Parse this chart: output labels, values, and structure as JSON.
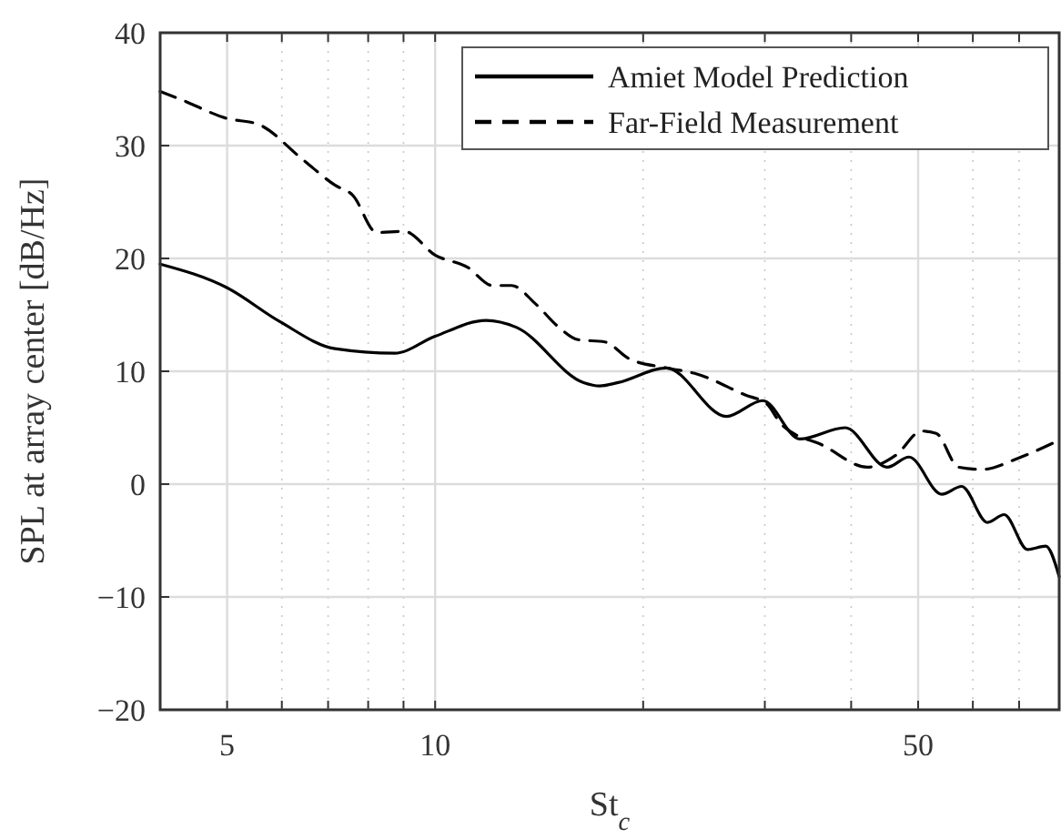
{
  "chart_data": {
    "type": "line",
    "xlabel": "St$_{c}$",
    "ylabel": "SPL at array center [dB/Hz]",
    "log": "x",
    "grid": true,
    "legend": "top right",
    "marker": "none",
    "xlim": [
      4,
      80
    ],
    "ylim": [
      -20,
      40
    ],
    "xticks": [
      5,
      {
        "value": 6,
        "label": null
      },
      {
        "value": 7,
        "label": null
      },
      {
        "value": 8,
        "label": null
      },
      {
        "value": 9,
        "label": null
      },
      10,
      {
        "value": 20,
        "label": null
      },
      {
        "value": 30,
        "label": null
      },
      {
        "value": 40,
        "label": null
      },
      50,
      {
        "value": 60,
        "label": null
      },
      {
        "value": 70,
        "label": null
      },
      {
        "value": 80,
        "label": null
      }
    ],
    "yticks": [
      -20,
      -10,
      0,
      10,
      20,
      30,
      40
    ],
    "series": [
      {
        "name": "Amiet Model Prediction",
        "color": "#000000",
        "line_style": "solid",
        "x": [
          4.0,
          5.0,
          5.96,
          7.16,
          8.74,
          10.0,
          11.85,
          13.1,
          16.4,
          17.3,
          18.4,
          21.6,
          26.4,
          29.8,
          33.7,
          39.2,
          45.1,
          48.5,
          54.1,
          57.8,
          63.0,
          66.6,
          72.0,
          76.5,
          80.0
        ],
        "values": [
          19.5,
          17.4,
          14.4,
          12.0,
          11.6,
          13.1,
          14.5,
          13.9,
          9.0,
          8.7,
          9.0,
          10.3,
          6.0,
          7.4,
          4.0,
          5.0,
          1.5,
          2.4,
          -0.9,
          -0.2,
          -3.4,
          -2.7,
          -5.8,
          -5.5,
          -8.2
        ]
      },
      {
        "name": "Far-Field Measurement",
        "color": "#000000",
        "line_style": "dashed",
        "x": [
          4.0,
          4.32,
          5.0,
          5.54,
          6.45,
          7.16,
          7.6,
          8.23,
          9.02,
          10.0,
          11.15,
          12.1,
          12.9,
          13.96,
          15.1,
          16.1,
          17.6,
          19.1,
          21.6,
          23.8,
          28.1,
          30.2,
          31.7,
          36.5,
          42.2,
          46.5,
          50.6,
          53.1,
          57.2,
          61.9,
          69.8,
          80.0
        ],
        "values": [
          34.8,
          34.0,
          32.4,
          31.9,
          28.7,
          26.5,
          25.6,
          22.3,
          22.4,
          20.3,
          19.2,
          17.6,
          17.6,
          16.0,
          13.9,
          12.8,
          12.6,
          11.1,
          10.3,
          9.8,
          7.9,
          7.1,
          5.3,
          3.4,
          1.5,
          2.6,
          4.7,
          4.5,
          1.5,
          1.3,
          2.3,
          3.9
        ]
      }
    ]
  }
}
